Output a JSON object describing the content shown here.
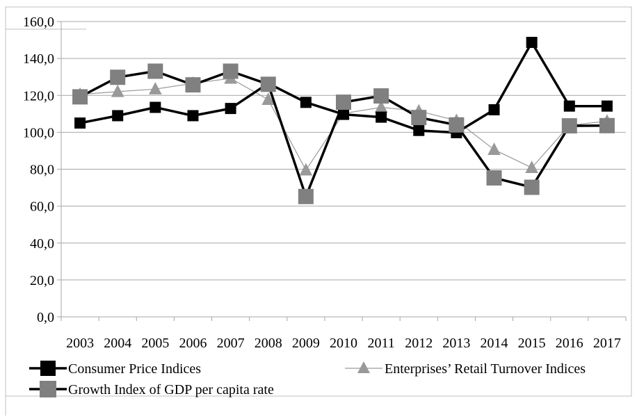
{
  "chart_data": {
    "type": "line",
    "title": "",
    "xlabel": "",
    "ylabel": "",
    "categories": [
      "2003",
      "2004",
      "2005",
      "2006",
      "2007",
      "2008",
      "2009",
      "2010",
      "2011",
      "2012",
      "2013",
      "2014",
      "2015",
      "2016",
      "2017"
    ],
    "ylim": [
      0,
      160
    ],
    "yticks": [
      "0,0",
      "20,0",
      "40,0",
      "60,0",
      "80,0",
      "100,0",
      "120,0",
      "140,0",
      "160,0"
    ],
    "grid": "horizontal",
    "legend_position": "bottom",
    "series": [
      {
        "name": "Consumer Price Indices",
        "marker": "square",
        "color": "#000000",
        "values": [
          105.0,
          109.0,
          113.5,
          109.0,
          112.9,
          126.5,
          116.2,
          109.7,
          108.2,
          101.0,
          99.8,
          112.2,
          148.7,
          114.2,
          114.2
        ]
      },
      {
        "name": "Enterprises’ Retail Turnover Indices",
        "marker": "triangle",
        "color": "#999999",
        "values": [
          120.5,
          122.0,
          123.4,
          126.5,
          129.2,
          117.7,
          79.5,
          110.2,
          113.5,
          111.5,
          106.3,
          90.6,
          80.8,
          103.8,
          106.0
        ]
      },
      {
        "name": "Growth Index of GDP per capita rate",
        "marker": "square",
        "color": "#808080",
        "values": [
          119.2,
          129.8,
          133.1,
          125.7,
          133.1,
          126.0,
          65.2,
          116.3,
          119.7,
          108.0,
          104.0,
          75.3,
          70.2,
          103.5,
          103.6
        ]
      }
    ]
  }
}
